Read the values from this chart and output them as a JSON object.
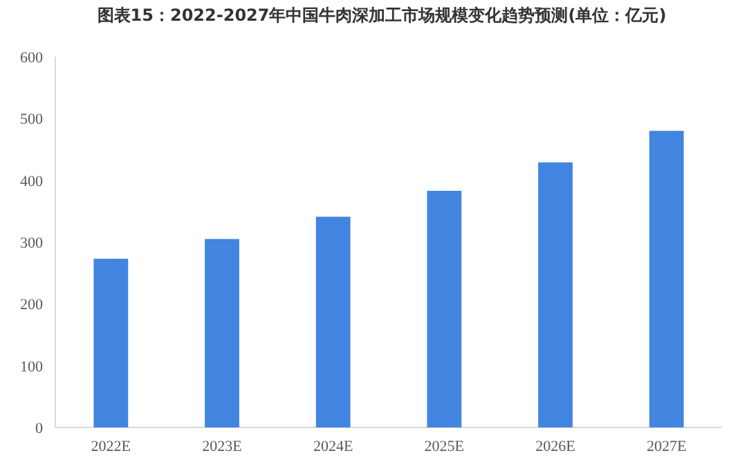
{
  "chart_data": {
    "type": "bar",
    "title": "图表15：2022-2027年中国牛肉深加工市场规模变化趋势预测(单位：亿元)",
    "categories": [
      "2022E",
      "2023E",
      "2024E",
      "2025E",
      "2026E",
      "2027E"
    ],
    "values": [
      273,
      305,
      341,
      383,
      429,
      480
    ],
    "color": "#4285e0",
    "ylim": [
      0,
      600
    ],
    "yticks": [
      0,
      100,
      200,
      300,
      400,
      500,
      600
    ],
    "grid": false
  }
}
